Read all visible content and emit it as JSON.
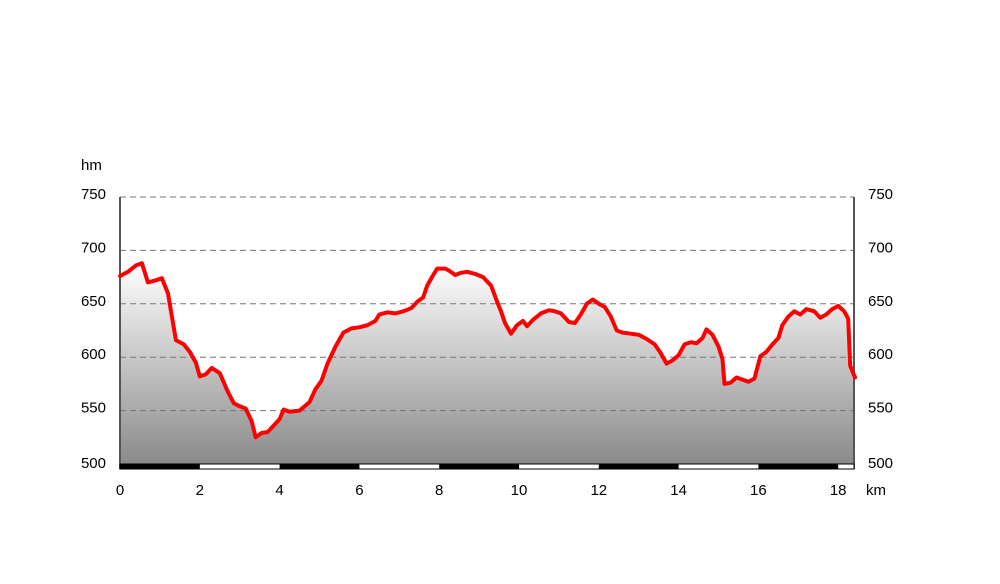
{
  "chart_data": {
    "type": "area",
    "title": "",
    "xlabel": "km",
    "ylabel": "hm",
    "xlim": [
      0,
      18.4
    ],
    "ylim": [
      500,
      750
    ],
    "x_ticks": [
      "0",
      "2",
      "4",
      "6",
      "8",
      "10",
      "12",
      "14",
      "16",
      "18"
    ],
    "y_ticks": [
      "500",
      "550",
      "600",
      "650",
      "700",
      "750"
    ],
    "grid": "horizontal-dashed",
    "colors": {
      "line": "#ff0000",
      "fill_top": "#ffffff",
      "fill_bottom": "#8a8a8a",
      "grid": "#777777",
      "axis": "#555555"
    },
    "series": [
      {
        "points": [
          [
            0.0,
            676
          ],
          [
            0.2,
            680
          ],
          [
            0.4,
            686
          ],
          [
            0.55,
            688
          ],
          [
            0.7,
            670
          ],
          [
            0.9,
            672
          ],
          [
            1.05,
            674
          ],
          [
            1.2,
            660
          ],
          [
            1.4,
            616
          ],
          [
            1.6,
            612
          ],
          [
            1.75,
            605
          ],
          [
            1.9,
            595
          ],
          [
            2.0,
            582
          ],
          [
            2.15,
            584
          ],
          [
            2.3,
            590
          ],
          [
            2.5,
            585
          ],
          [
            2.7,
            568
          ],
          [
            2.85,
            557
          ],
          [
            3.0,
            554
          ],
          [
            3.15,
            552
          ],
          [
            3.3,
            540
          ],
          [
            3.4,
            525
          ],
          [
            3.55,
            529
          ],
          [
            3.7,
            530
          ],
          [
            3.85,
            536
          ],
          [
            4.0,
            542
          ],
          [
            4.1,
            551
          ],
          [
            4.25,
            549
          ],
          [
            4.5,
            550
          ],
          [
            4.75,
            558
          ],
          [
            4.9,
            570
          ],
          [
            5.05,
            578
          ],
          [
            5.2,
            594
          ],
          [
            5.4,
            610
          ],
          [
            5.6,
            623
          ],
          [
            5.8,
            627
          ],
          [
            6.0,
            628
          ],
          [
            6.2,
            630
          ],
          [
            6.4,
            634
          ],
          [
            6.5,
            640
          ],
          [
            6.7,
            642
          ],
          [
            6.9,
            641
          ],
          [
            7.1,
            643
          ],
          [
            7.3,
            646
          ],
          [
            7.45,
            652
          ],
          [
            7.6,
            656
          ],
          [
            7.7,
            667
          ],
          [
            7.85,
            677
          ],
          [
            7.95,
            683
          ],
          [
            8.15,
            683
          ],
          [
            8.25,
            681
          ],
          [
            8.4,
            677
          ],
          [
            8.55,
            679
          ],
          [
            8.7,
            680
          ],
          [
            8.9,
            678
          ],
          [
            9.1,
            675
          ],
          [
            9.3,
            667
          ],
          [
            9.45,
            652
          ],
          [
            9.55,
            643
          ],
          [
            9.65,
            632
          ],
          [
            9.8,
            622
          ],
          [
            9.95,
            630
          ],
          [
            10.1,
            634
          ],
          [
            10.2,
            629
          ],
          [
            10.35,
            635
          ],
          [
            10.55,
            641
          ],
          [
            10.75,
            644
          ],
          [
            10.9,
            643
          ],
          [
            11.05,
            641
          ],
          [
            11.25,
            633
          ],
          [
            11.4,
            632
          ],
          [
            11.55,
            640
          ],
          [
            11.7,
            650
          ],
          [
            11.85,
            654
          ],
          [
            12.0,
            650
          ],
          [
            12.15,
            647
          ],
          [
            12.3,
            638
          ],
          [
            12.45,
            625
          ],
          [
            12.6,
            623
          ],
          [
            12.8,
            622
          ],
          [
            13.0,
            621
          ],
          [
            13.2,
            617
          ],
          [
            13.4,
            612
          ],
          [
            13.55,
            604
          ],
          [
            13.7,
            594
          ],
          [
            13.85,
            597
          ],
          [
            14.0,
            602
          ],
          [
            14.15,
            612
          ],
          [
            14.3,
            614
          ],
          [
            14.45,
            613
          ],
          [
            14.6,
            618
          ],
          [
            14.7,
            626
          ],
          [
            14.85,
            621
          ],
          [
            15.0,
            610
          ],
          [
            15.1,
            598
          ],
          [
            15.15,
            575
          ],
          [
            15.3,
            576
          ],
          [
            15.45,
            581
          ],
          [
            15.6,
            579
          ],
          [
            15.75,
            577
          ],
          [
            15.9,
            580
          ],
          [
            16.05,
            601
          ],
          [
            16.2,
            605
          ],
          [
            16.35,
            612
          ],
          [
            16.5,
            618
          ],
          [
            16.6,
            630
          ],
          [
            16.75,
            638
          ],
          [
            16.9,
            643
          ],
          [
            17.05,
            640
          ],
          [
            17.2,
            645
          ],
          [
            17.4,
            643
          ],
          [
            17.55,
            637
          ],
          [
            17.7,
            640
          ],
          [
            17.85,
            645
          ],
          [
            18.0,
            648
          ],
          [
            18.15,
            643
          ],
          [
            18.25,
            636
          ],
          [
            18.3,
            592
          ],
          [
            18.42,
            581
          ]
        ]
      }
    ]
  }
}
